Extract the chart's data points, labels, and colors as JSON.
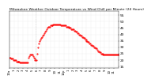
{
  "title": "Milwaukee Weather Outdoor Temperature vs Wind Chill per Minute (24 Hours)",
  "title_fontsize": 3.2,
  "title_color": "#000000",
  "bg_color": "#ffffff",
  "plot_bg_color": "#ffffff",
  "line_color": "#ff0000",
  "marker": ".",
  "marker_size": 1.0,
  "vline_x": 350,
  "vline_color": "#bbbbbb",
  "vline_style": "dotted",
  "ylim": [
    14,
    58
  ],
  "xlim": [
    0,
    1440
  ],
  "yticks": [
    15,
    20,
    25,
    30,
    35,
    40,
    45,
    50,
    55
  ],
  "ytick_fontsize": 3.2,
  "xtick_fontsize": 2.8,
  "xtick_labels": [
    "12a",
    "1",
    "2",
    "3",
    "4",
    "5",
    "6",
    "7",
    "8",
    "9",
    "10",
    "11",
    "12p",
    "1",
    "2",
    "3",
    "4",
    "5",
    "6",
    "7",
    "8",
    "9",
    "10",
    "11"
  ],
  "xtick_positions": [
    0,
    60,
    120,
    180,
    240,
    300,
    360,
    420,
    480,
    540,
    600,
    660,
    720,
    780,
    840,
    900,
    960,
    1020,
    1080,
    1140,
    1200,
    1260,
    1320,
    1380
  ],
  "data_x": [
    0,
    10,
    20,
    30,
    40,
    50,
    60,
    70,
    80,
    90,
    100,
    110,
    120,
    130,
    140,
    150,
    160,
    170,
    180,
    190,
    200,
    210,
    220,
    230,
    240,
    250,
    260,
    270,
    280,
    290,
    300,
    310,
    320,
    330,
    340,
    350,
    360,
    370,
    380,
    390,
    400,
    410,
    420,
    430,
    440,
    450,
    460,
    470,
    480,
    490,
    500,
    510,
    520,
    530,
    540,
    550,
    560,
    570,
    580,
    590,
    600,
    610,
    620,
    630,
    640,
    650,
    660,
    670,
    680,
    690,
    700,
    710,
    720,
    730,
    740,
    750,
    760,
    770,
    780,
    790,
    800,
    810,
    820,
    830,
    840,
    850,
    860,
    870,
    880,
    890,
    900,
    910,
    920,
    930,
    940,
    950,
    960,
    970,
    980,
    990,
    1000,
    1010,
    1020,
    1030,
    1040,
    1050,
    1060,
    1070,
    1080,
    1090,
    1100,
    1110,
    1120,
    1130,
    1140,
    1150,
    1160,
    1170,
    1180,
    1190,
    1200,
    1210,
    1220,
    1230,
    1240,
    1250,
    1260,
    1270,
    1280,
    1290,
    1300,
    1310,
    1320,
    1330,
    1340,
    1350,
    1360,
    1370,
    1380,
    1390,
    1400,
    1410,
    1420,
    1430,
    1440
  ],
  "data_y": [
    22,
    22,
    21,
    21,
    21,
    20,
    20,
    20,
    20,
    19,
    19,
    19,
    19,
    19,
    18,
    18,
    18,
    18,
    18,
    18,
    18,
    18,
    18,
    18,
    18,
    22,
    23,
    24,
    24,
    24,
    24,
    23,
    22,
    21,
    20,
    20,
    20,
    25,
    30,
    33,
    35,
    36,
    37,
    38,
    39,
    40,
    41,
    42,
    43,
    44,
    45,
    46,
    46,
    46,
    47,
    47,
    47,
    47,
    48,
    48,
    48,
    48,
    48,
    48,
    48,
    48,
    48,
    48,
    47,
    47,
    47,
    47,
    47,
    47,
    47,
    46,
    46,
    46,
    46,
    45,
    45,
    45,
    44,
    44,
    44,
    44,
    43,
    43,
    42,
    42,
    41,
    41,
    40,
    40,
    39,
    39,
    38,
    38,
    37,
    37,
    36,
    36,
    35,
    35,
    34,
    34,
    33,
    33,
    32,
    32,
    31,
    31,
    30,
    30,
    29,
    29,
    28,
    27,
    27,
    26,
    26,
    25,
    25,
    25,
    24,
    24,
    24,
    24,
    24,
    24,
    24,
    24,
    24,
    24,
    24,
    24,
    24,
    24,
    24,
    24,
    24,
    24,
    24,
    24,
    24
  ]
}
